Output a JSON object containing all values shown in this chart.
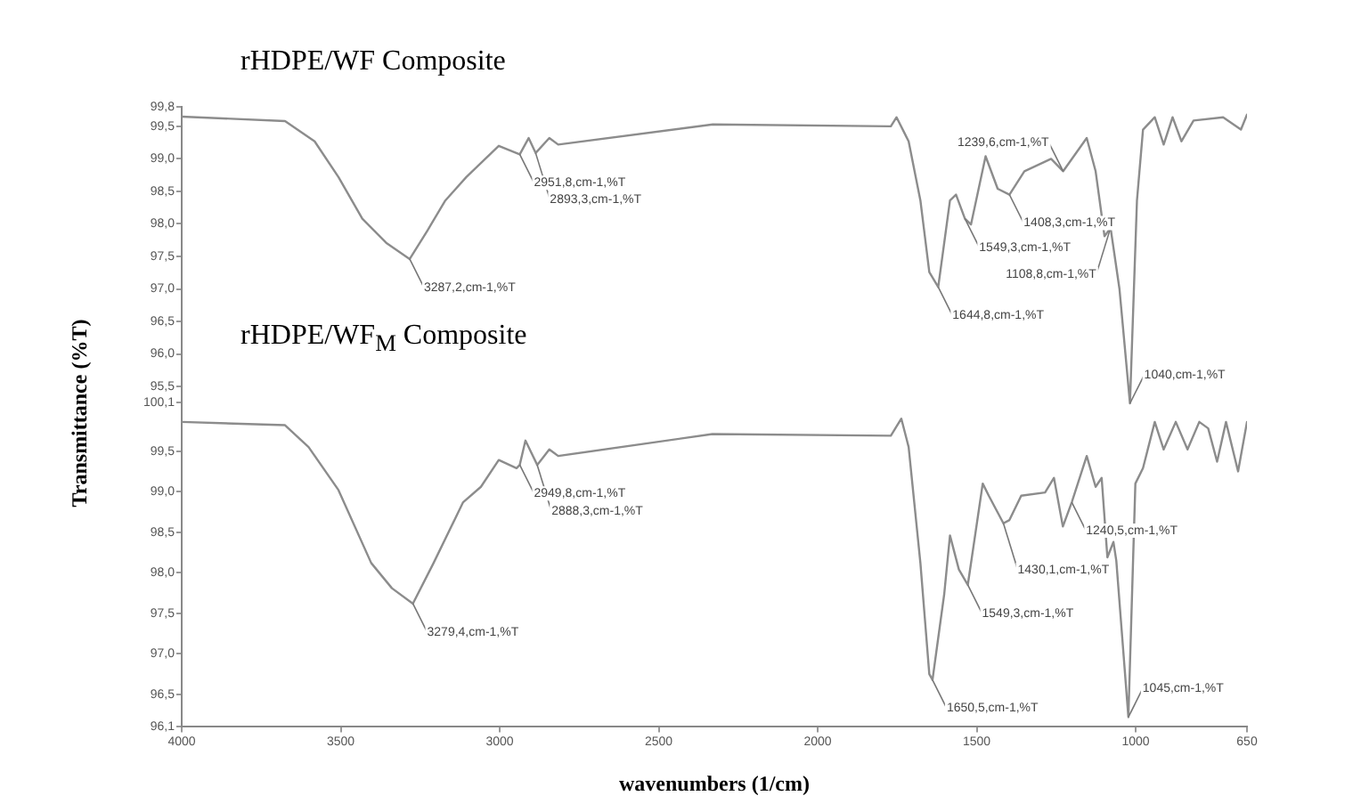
{
  "chart_data": [
    {
      "type": "line",
      "title": "rHDPE/WF Composite",
      "ylabel": "Transmittance (%T)",
      "xlim": [
        4000,
        650
      ],
      "ylim": [
        95.2,
        99.8
      ],
      "tick_labels": "y",
      "grid": false,
      "yticks": [
        {
          "value": 95.5,
          "label": "95,5"
        },
        {
          "value": 96.0,
          "label": "96,0"
        },
        {
          "value": 96.5,
          "label": "96,5"
        },
        {
          "value": 97.0,
          "label": "97,0"
        },
        {
          "value": 97.5,
          "label": "97,5"
        },
        {
          "value": 98.0,
          "label": "98,0"
        },
        {
          "value": 98.5,
          "label": "98,5"
        },
        {
          "value": 99.0,
          "label": "99,0"
        },
        {
          "value": 99.5,
          "label": "99,5"
        },
        {
          "value": 99.8,
          "label": "99,8"
        }
      ],
      "series": [
        {
          "color": "#8c8c8c",
          "x": [
            4000,
            3675,
            3582,
            3507,
            3432,
            3357,
            3283,
            3227,
            3171,
            3105,
            3003,
            2937,
            2909,
            2887,
            2844,
            2816,
            2330,
            1770,
            1752,
            1714,
            1677,
            1649,
            1621,
            1584,
            1565,
            1537,
            1518,
            1472,
            1434,
            1397,
            1350,
            1266,
            1228,
            1154,
            1126,
            1098,
            1079,
            1051,
            1018,
            996,
            977,
            940,
            912,
            884,
            856,
            818,
            725,
            669,
            650
          ],
          "values": [
            99.65,
            99.58,
            99.27,
            98.72,
            98.08,
            97.71,
            97.46,
            97.9,
            98.36,
            98.72,
            99.2,
            99.07,
            99.32,
            99.09,
            99.32,
            99.22,
            99.53,
            99.5,
            99.64,
            99.27,
            98.36,
            97.26,
            97.03,
            98.36,
            98.45,
            98.08,
            97.99,
            99.04,
            98.54,
            98.45,
            98.81,
            99.0,
            98.81,
            99.32,
            98.81,
            97.81,
            97.94,
            97.0,
            95.24,
            98.36,
            99.45,
            99.64,
            99.22,
            99.64,
            99.27,
            99.59,
            99.64,
            99.45,
            99.68
          ]
        }
      ],
      "annotations": [
        {
          "text": "3287,2,cm-1,%T",
          "x": 3283,
          "y": 97.46
        },
        {
          "text": "2951,8,cm-1,%T",
          "x": 2937,
          "y": 99.07
        },
        {
          "text": "2893,3,cm-1,%T",
          "x": 2887,
          "y": 99.09
        },
        {
          "text": "1644,8,cm-1,%T",
          "x": 1621,
          "y": 97.03
        },
        {
          "text": "1549,3,cm-1,%T",
          "x": 1537,
          "y": 98.08
        },
        {
          "text": "1408,3,cm-1,%T",
          "x": 1397,
          "y": 98.45
        },
        {
          "text": "1239,6,cm-1,%T",
          "x": 1228,
          "y": 98.81
        },
        {
          "text": "1108,8,cm-1,%T",
          "x": 1079,
          "y": 97.94
        },
        {
          "text": "1040,cm-1,%T",
          "x": 1018,
          "y": 95.24
        }
      ]
    },
    {
      "type": "line",
      "title": "rHDPE/WF$_{M}$ Composite",
      "xlabel": "wavenumbers (1/cm)",
      "xlim": [
        4000,
        650
      ],
      "ylim": [
        96.1,
        100.1
      ],
      "grid": false,
      "xticks": [
        4000,
        3500,
        3000,
        2500,
        2000,
        1500,
        1000,
        650
      ],
      "yticks": [
        {
          "value": 96.1,
          "label": "96,1"
        },
        {
          "value": 96.5,
          "label": "96,5"
        },
        {
          "value": 97.0,
          "label": "97,0"
        },
        {
          "value": 97.5,
          "label": "97,5"
        },
        {
          "value": 98.0,
          "label": "98,0"
        },
        {
          "value": 98.5,
          "label": "98,5"
        },
        {
          "value": 99.0,
          "label": "99,0"
        },
        {
          "value": 99.5,
          "label": "99,5"
        },
        {
          "value": 100.1,
          "label": "100,1"
        }
      ],
      "series": [
        {
          "color": "#8c8c8c",
          "x": [
            4000,
            3675,
            3601,
            3507,
            3404,
            3339,
            3273,
            3208,
            3115,
            3059,
            3003,
            2947,
            2937,
            2919,
            2882,
            2844,
            2816,
            2331,
            1770,
            1737,
            1714,
            1677,
            1649,
            1639,
            1602,
            1584,
            1556,
            1528,
            1481,
            1462,
            1416,
            1397,
            1360,
            1285,
            1257,
            1229,
            1201,
            1154,
            1126,
            1107,
            1089,
            1070,
            1061,
            1023,
            1001,
            977,
            940,
            912,
            874,
            837,
            800,
            772,
            744,
            716,
            678,
            650
          ],
          "values": [
            99.86,
            99.82,
            99.55,
            99.02,
            98.12,
            97.81,
            97.62,
            98.12,
            98.87,
            99.06,
            99.39,
            99.29,
            99.33,
            99.63,
            99.33,
            99.52,
            99.44,
            99.71,
            99.69,
            99.9,
            99.55,
            98.12,
            96.75,
            96.68,
            97.74,
            98.46,
            98.04,
            97.85,
            99.1,
            98.95,
            98.61,
            98.65,
            98.95,
            98.99,
            99.17,
            98.57,
            98.87,
            99.44,
            99.06,
            99.17,
            98.19,
            98.38,
            98.15,
            96.22,
            99.1,
            99.29,
            99.86,
            99.52,
            99.86,
            99.52,
            99.86,
            99.78,
            99.37,
            99.86,
            99.25,
            99.86
          ]
        }
      ],
      "annotations": [
        {
          "text": "3279,4,cm-1,%T",
          "x": 3273,
          "y": 97.62
        },
        {
          "text": "2949,8,cm-1,%T",
          "x": 2937,
          "y": 99.33
        },
        {
          "text": "2888,3,cm-1,%T",
          "x": 2882,
          "y": 99.33
        },
        {
          "text": "1650,5,cm-1,%T",
          "x": 1639,
          "y": 96.68
        },
        {
          "text": "1549,3,cm-1,%T",
          "x": 1528,
          "y": 97.85
        },
        {
          "text": "1430,1,cm-1,%T",
          "x": 1416,
          "y": 98.61
        },
        {
          "text": "1240,5,cm-1,%T",
          "x": 1201,
          "y": 98.87
        },
        {
          "text": "1045,cm-1,%T",
          "x": 1023,
          "y": 96.22
        }
      ]
    }
  ]
}
